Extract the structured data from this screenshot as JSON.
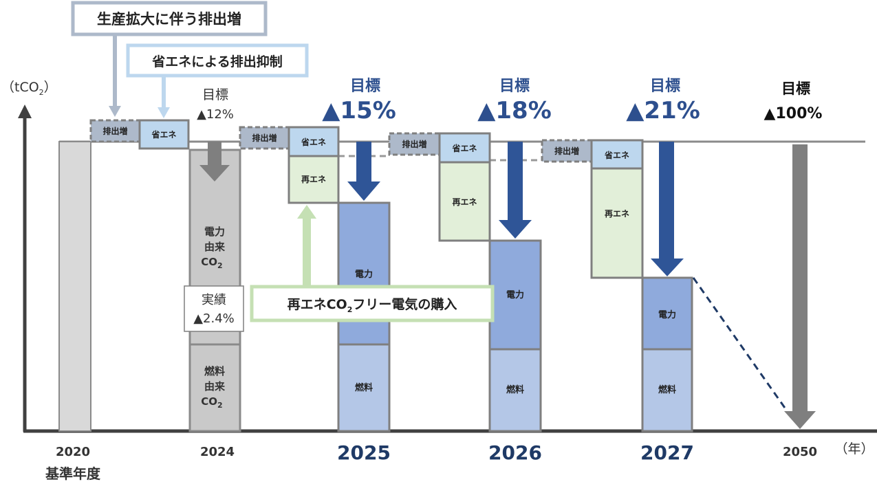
{
  "chart_data": {
    "type": "bar",
    "unit_label": "（tCO",
    "unit_label_sub": "2",
    "unit_label_close": "）",
    "year_unit": "（年）",
    "base_year_label": "基準年度",
    "categories": [
      "2020",
      "2024",
      "2025",
      "2026",
      "2027",
      "2050"
    ],
    "series": [
      {
        "name": "電力",
        "values": [
          null,
          null,
          45,
          45,
          25,
          null
        ]
      },
      {
        "name": "燃料",
        "values": [
          null,
          null,
          30,
          29,
          29,
          null
        ]
      },
      {
        "name": "再エネ",
        "values": [
          null,
          null,
          16,
          27,
          38,
          null
        ]
      },
      {
        "name": "省エネ",
        "values": [
          null,
          null,
          10,
          11,
          10,
          null
        ]
      },
      {
        "name": "排出増",
        "values": [
          null,
          null,
          7,
          7,
          7,
          null
        ]
      }
    ],
    "base_value": 100,
    "bars": {
      "2020": {
        "total": 100
      },
      "2024": {
        "fuel": 30,
        "electric": 69
      },
      "2025": {
        "fuel": 30,
        "electric": 45,
        "renewable": 16,
        "saving": 10,
        "increase": 7
      },
      "2026": {
        "fuel": 29,
        "electric": 45,
        "renewable": 27,
        "saving": 11,
        "increase": 7
      },
      "2027": {
        "fuel": 29,
        "electric": 25,
        "renewable": 38,
        "saving": 10,
        "increase": 7
      }
    },
    "annotations": {
      "callout_increase": "生産拡大に伴う排出増",
      "callout_saving": "省エネによる排出抑制",
      "callout_renewable": "再エネCO",
      "callout_renewable_sub": "2",
      "callout_renewable_tail": "フリー電気の購入",
      "actual_label": "実績",
      "actual_value": "▲2.4%",
      "target_2024_label": "目標",
      "target_2024_value": "▲12%",
      "target_2025_label": "目標",
      "target_2025_value": "▲15%",
      "target_2026_label": "目標",
      "target_2026_value": "▲18%",
      "target_2027_label": "目標",
      "target_2027_value": "▲21%",
      "target_2050_label": "目標",
      "target_2050_value": "▲100%"
    },
    "segment_labels": {
      "increase": "排出増",
      "saving": "省エネ",
      "renewable": "再エネ",
      "electric": "電力",
      "fuel": "燃料",
      "electric_2024_line1": "電力",
      "electric_2024_line2": "由来",
      "electric_2024_line3": "CO",
      "fuel_2024_line1": "燃料",
      "fuel_2024_line2": "由来",
      "fuel_2024_line3": "CO",
      "co2_sub": "2"
    },
    "targets_pct": {
      "2024": 12,
      "2025": 15,
      "2026": 18,
      "2027": 21,
      "2050": 100
    },
    "actual_2024_pct": 2.4,
    "colors": {
      "base_bar": "#d9d9d9",
      "bar_2024": "#c9c9c9",
      "electric": "#8faadc",
      "fuel": "#b4c7e7",
      "renewable": "#e2efd9",
      "saving": "#bdd7ee",
      "increase": "#adb9ca",
      "border": "#7f7f7f",
      "arrow_blue": "#2f5597",
      "arrow_gray": "#7f7f7f",
      "callout_blue_border": "#8faadc",
      "callout_green_border": "#c5e0b4",
      "callout_green_arrow": "#c5e0b4",
      "axis": "#404040"
    }
  }
}
